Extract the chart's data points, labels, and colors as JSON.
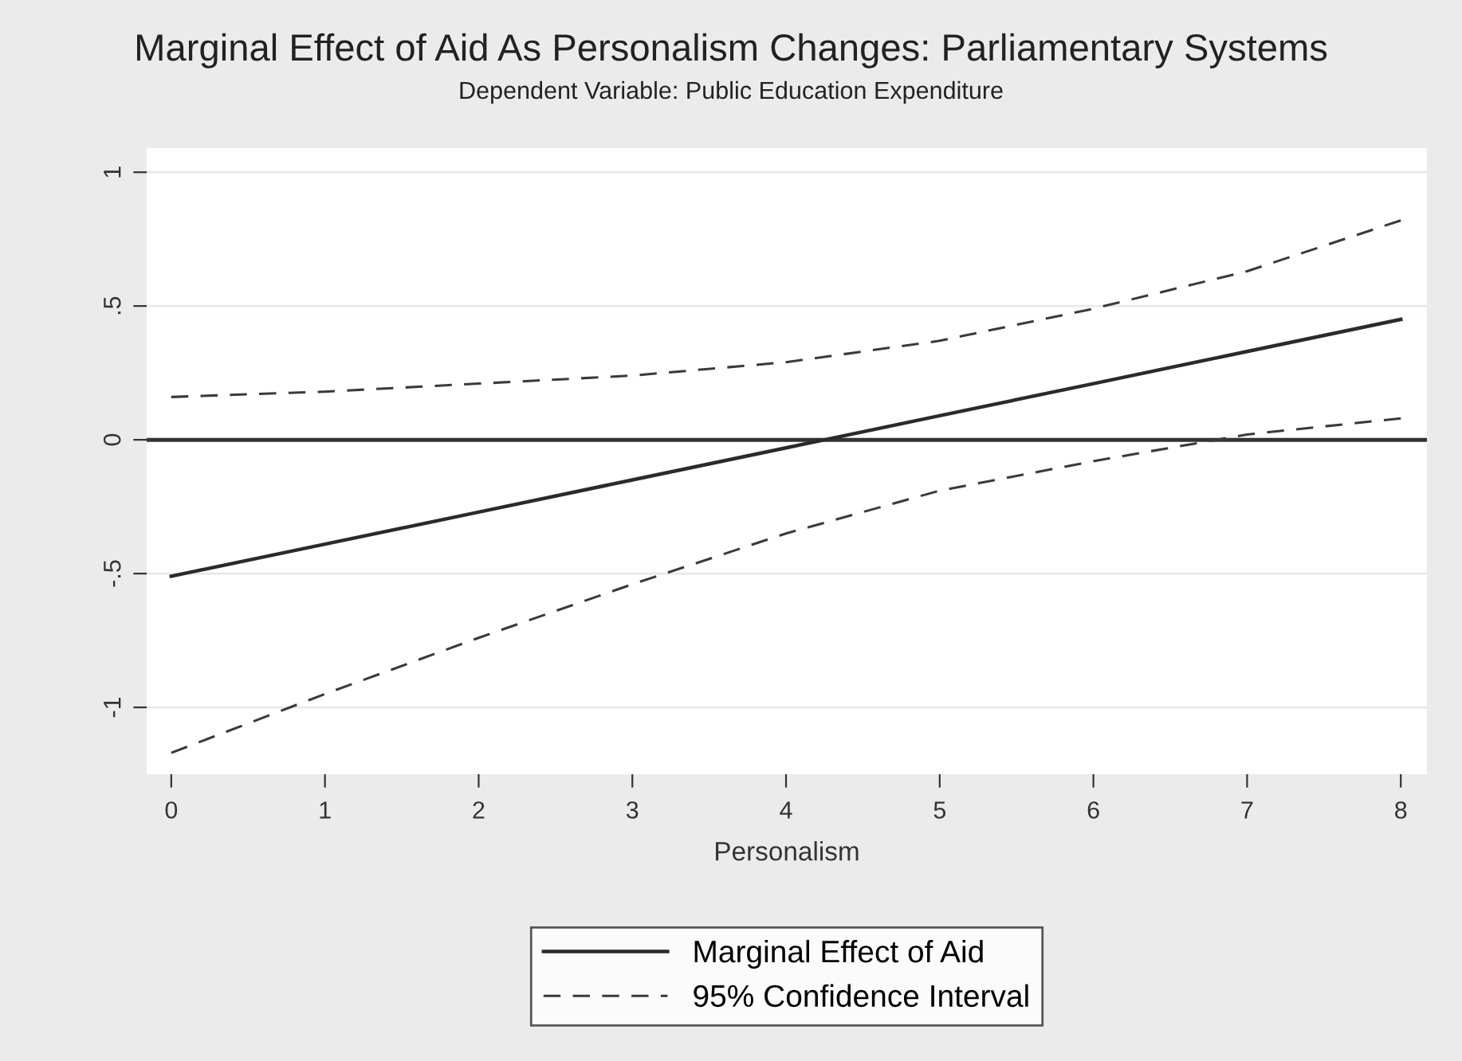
{
  "chart_data": {
    "type": "line",
    "title": "Marginal Effect of Aid As Personalism Changes: Parliamentary Systems",
    "subtitle": "Dependent Variable: Public Education Expenditure",
    "xlabel": "Personalism",
    "x": [
      0,
      1,
      2,
      3,
      4,
      5,
      6,
      7,
      8
    ],
    "series": [
      {
        "name": "Marginal Effect of Aid",
        "color": "#2a2a2a",
        "line_style": "solid",
        "values": [
          -0.51,
          -0.39,
          -0.27,
          -0.15,
          -0.03,
          0.09,
          0.21,
          0.33,
          0.45
        ]
      },
      {
        "name": "95% Confidence Interval",
        "color": "#3a3a3a",
        "line_style": "dashed",
        "values": [
          0.16,
          0.18,
          0.21,
          0.24,
          0.29,
          0.37,
          0.49,
          0.63,
          0.82
        ]
      },
      {
        "color": "#3a3a3a",
        "line_style": "dashed",
        "values": [
          -1.17,
          -0.95,
          -0.74,
          -0.54,
          -0.35,
          -0.19,
          -0.08,
          0.02,
          0.08
        ]
      }
    ],
    "xlim": [
      -0.16,
      8.17
    ],
    "ylim": [
      -1.25,
      1.09
    ],
    "xticks": [
      0,
      1,
      2,
      3,
      4,
      5,
      6,
      7,
      8
    ],
    "yticks": [
      {
        "value": -1,
        "label": "-1"
      },
      {
        "value": -0.5,
        "label": "-.5"
      },
      0,
      {
        "value": 0.5,
        "label": ".5"
      },
      1
    ],
    "ref_lines": [
      {
        "axis": "y",
        "value": 0,
        "color": "#333333",
        "line_style": "solid"
      }
    ],
    "grid": "y",
    "legend": "bottom",
    "marker": "none"
  }
}
